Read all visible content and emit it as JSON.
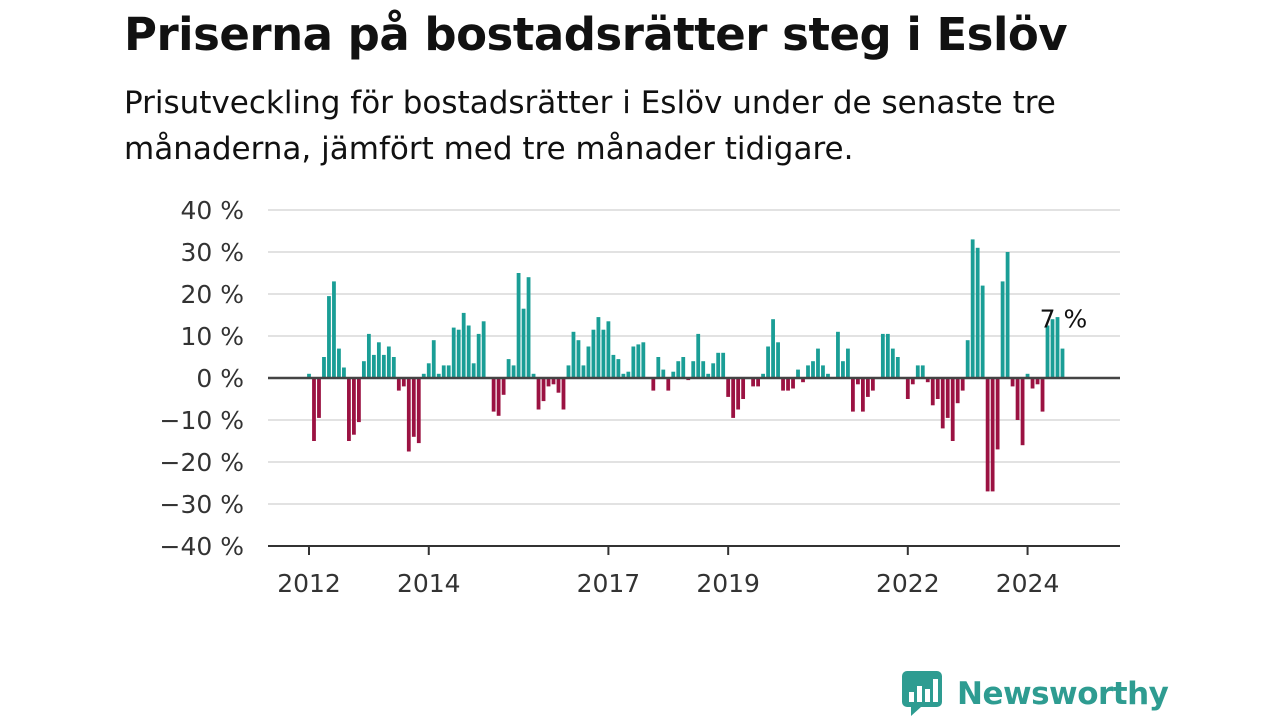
{
  "header": {
    "title": "Priserna på bostadsrätter steg i Eslöv",
    "subtitle": "Prisutveckling för bostadsrätter i Eslöv under de senaste tre månaderna, jämfört med tre månader tidigare."
  },
  "brand": {
    "name": "Newsworthy",
    "color": "#2e9c91",
    "icon": "newsworthy-logo-icon"
  },
  "chart_data": {
    "type": "bar",
    "title": "Priserna på bostadsrätter steg i Eslöv",
    "subtitle": "Prisutveckling för bostadsrätter i Eslöv under de senaste tre månaderna, jämfört med tre månader tidigare.",
    "ylim": [
      -40,
      40
    ],
    "yticks": [
      40,
      30,
      20,
      10,
      0,
      -10,
      -20,
      -30,
      -40
    ],
    "ytick_labels": [
      "40 %",
      "30 %",
      "20 %",
      "10 %",
      "0 %",
      "−10 %",
      "−20 %",
      "−30 %",
      "−40 %"
    ],
    "x_start": "2012-01",
    "xtick_labels": [
      "2012",
      "2014",
      "2017",
      "2019",
      "2022",
      "2024"
    ],
    "positive_color": "#1a9e96",
    "negative_color": "#9b1242",
    "grid": true,
    "annotation": {
      "label": "7 %",
      "value": 7
    },
    "values": [
      1,
      -15,
      -9.5,
      5,
      19.5,
      23,
      7,
      2.5,
      -15,
      -13.5,
      -10.5,
      4,
      10.5,
      5.5,
      8.5,
      5.5,
      7.5,
      5,
      -3,
      -2,
      -17.5,
      -14,
      -15.5,
      1,
      3.5,
      9,
      1,
      3,
      3,
      12,
      11.5,
      15.5,
      12.5,
      3.5,
      10.5,
      13.5,
      0,
      -8,
      -9,
      -4,
      4.5,
      3,
      25,
      16.5,
      24,
      1,
      -7.5,
      -5.5,
      -2,
      -1.5,
      -3.5,
      -7.5,
      3,
      11,
      9,
      3,
      7.5,
      11.5,
      14.5,
      11.5,
      13.5,
      5.5,
      4.5,
      1,
      1.5,
      7.5,
      8,
      8.5,
      0,
      -3,
      5,
      2,
      -3,
      1.5,
      4,
      5,
      -0.5,
      4,
      10.5,
      4,
      1,
      3.5,
      6,
      6,
      -4.5,
      -9.5,
      -7.5,
      -5,
      0,
      -2,
      -2,
      1,
      7.5,
      14,
      8.5,
      -3,
      -3,
      -2.5,
      2,
      -1,
      3,
      4,
      7,
      3,
      1,
      0,
      11,
      4,
      7,
      -8,
      -1.5,
      -8,
      -4.5,
      -3,
      0,
      10.5,
      10.5,
      7,
      5,
      0,
      -5,
      -1.5,
      3,
      3,
      -1,
      -6.5,
      -5,
      -12,
      -9.5,
      -15,
      -6,
      -3,
      9,
      33,
      31,
      22,
      -27,
      -27,
      -17,
      23,
      30,
      -2,
      -10,
      -16,
      1,
      -2.5,
      -1.5,
      -8,
      12.5,
      14,
      14.5,
      7
    ]
  }
}
